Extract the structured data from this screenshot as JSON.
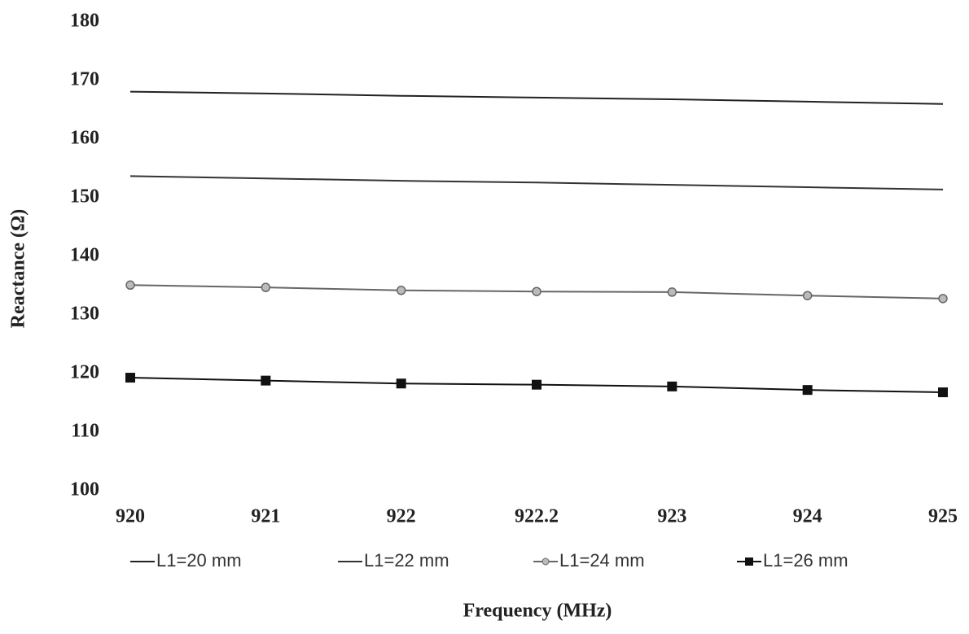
{
  "chart_data": {
    "type": "line",
    "x_label": "Frequency (MHz)",
    "y_label": "Reactance (Ω)",
    "categories": [
      "920",
      "921",
      "922",
      "922.2",
      "923",
      "924",
      "925"
    ],
    "series": [
      {
        "name": "L1=20 mm",
        "color": "#222222",
        "marker": "none",
        "values": [
          168.1,
          167.8,
          167.4,
          167.1,
          166.8,
          166.4,
          166.0
        ]
      },
      {
        "name": "L1=22 mm",
        "color": "#333333",
        "marker": "none",
        "values": [
          153.7,
          153.3,
          152.9,
          152.6,
          152.2,
          151.8,
          151.4
        ]
      },
      {
        "name": "L1=24 mm",
        "color": "#666666",
        "marker": "circle",
        "values": [
          135.1,
          134.7,
          134.2,
          134.0,
          133.9,
          133.3,
          132.8
        ]
      },
      {
        "name": "L1=26 mm",
        "color": "#111111",
        "marker": "square",
        "values": [
          119.3,
          118.8,
          118.3,
          118.1,
          117.8,
          117.2,
          116.8
        ]
      }
    ],
    "ylim": [
      100,
      180
    ],
    "yticks": [
      100,
      110,
      120,
      130,
      140,
      150,
      160,
      170,
      180
    ],
    "grid": false,
    "legend": "bottom"
  }
}
